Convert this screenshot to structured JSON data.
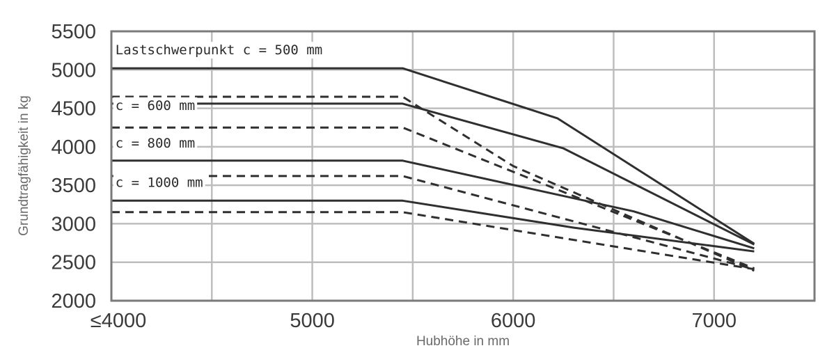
{
  "chart_data": {
    "type": "line",
    "xlabel": "Hubhöhe in mm",
    "ylabel": "Grundtragfähigkeit in kg",
    "x_ticks": [
      {
        "value": 4000,
        "label": "≤4000"
      },
      {
        "value": 5000,
        "label": "5000"
      },
      {
        "value": 6000,
        "label": "6000"
      },
      {
        "value": 7000,
        "label": "7000"
      }
    ],
    "x_gridlines": [
      4500,
      5000,
      5500,
      6000,
      6500,
      7000
    ],
    "xlim": [
      4000,
      7500
    ],
    "y_ticks": [
      2000,
      2500,
      3000,
      3500,
      4000,
      4500,
      5000,
      5500
    ],
    "ylim": [
      2000,
      5500
    ],
    "grid": true,
    "annotations": [
      {
        "text": "Lastschwerpunkt c = 500 mm",
        "x": 4020,
        "y": 5200
      },
      {
        "text": "c = 600 mm",
        "x": 4020,
        "y": 4480
      },
      {
        "text": "c = 800 mm",
        "x": 4020,
        "y": 3990
      },
      {
        "text": "c = 1000 mm",
        "x": 4020,
        "y": 3480
      }
    ],
    "series": [
      {
        "style": "solid",
        "x": [
          4000,
          5450,
          6220,
          7200
        ],
        "y": [
          5020,
          5020,
          4370,
          2740
        ]
      },
      {
        "style": "dashed",
        "x": [
          4000,
          5450,
          6000,
          7200
        ],
        "y": [
          4650,
          4650,
          3750,
          2390
        ]
      },
      {
        "style": "solid",
        "x": [
          4000,
          5450,
          6250,
          7200
        ],
        "y": [
          4560,
          4560,
          3980,
          2730
        ]
      },
      {
        "style": "dashed",
        "x": [
          4000,
          5450,
          7200
        ],
        "y": [
          4250,
          4250,
          2420
        ]
      },
      {
        "style": "solid",
        "x": [
          4000,
          5450,
          6600,
          7200
        ],
        "y": [
          3820,
          3820,
          3160,
          2680
        ]
      },
      {
        "style": "dashed",
        "x": [
          4000,
          5450,
          7200
        ],
        "y": [
          3620,
          3620,
          2410
        ]
      },
      {
        "style": "solid",
        "x": [
          4000,
          5450,
          6300,
          7200
        ],
        "y": [
          3300,
          3300,
          2950,
          2640
        ]
      },
      {
        "style": "dashed",
        "x": [
          4000,
          5450,
          7200
        ],
        "y": [
          3150,
          3150,
          2410
        ]
      }
    ]
  }
}
